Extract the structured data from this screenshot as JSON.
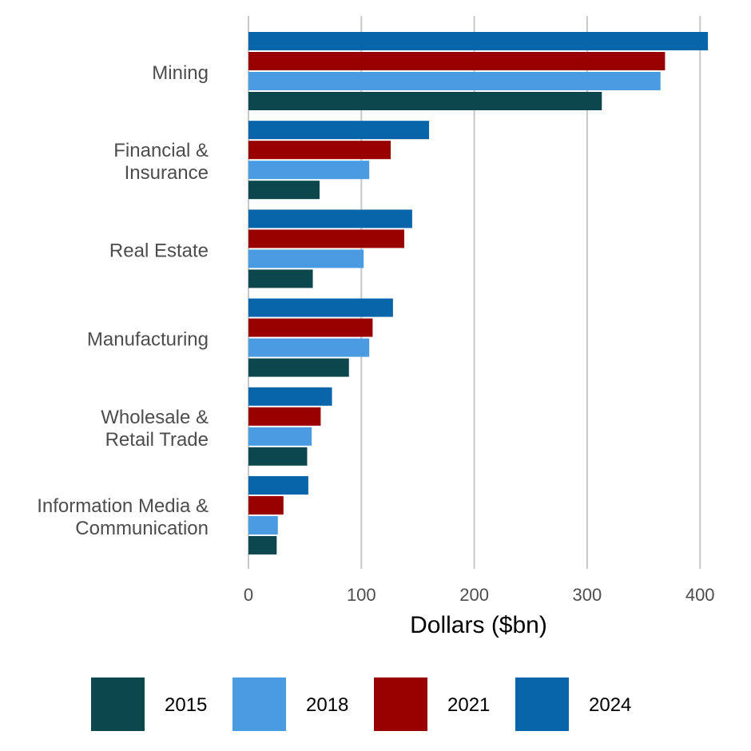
{
  "chart_data": {
    "type": "bar",
    "orientation": "horizontal",
    "categories": [
      [
        "Mining"
      ],
      [
        "Financial &",
        "Insurance"
      ],
      [
        "Real Estate"
      ],
      [
        "Manufacturing"
      ],
      [
        "Wholesale &",
        "Retail Trade"
      ],
      [
        "Information Media &",
        "Communication"
      ]
    ],
    "series": [
      {
        "name": "2024",
        "color": "#0865a9",
        "values": [
          407,
          160,
          145,
          128,
          74,
          53
        ]
      },
      {
        "name": "2021",
        "color": "#990000",
        "values": [
          369,
          126,
          138,
          110,
          64,
          31
        ]
      },
      {
        "name": "2018",
        "color": "#4a9be1",
        "values": [
          365,
          107,
          102,
          107,
          56,
          26
        ]
      },
      {
        "name": "2015",
        "color": "#0c474d",
        "values": [
          313,
          63,
          57,
          89,
          52,
          25
        ]
      }
    ],
    "xlabel": "Dollars ($bn)",
    "ylabel": "",
    "xlim": [
      0,
      410
    ],
    "xticks": [
      0,
      100,
      200,
      300,
      400
    ],
    "grid": "vertical",
    "legend": {
      "placement": "bottom",
      "order": [
        "2015",
        "2018",
        "2021",
        "2024"
      ]
    }
  }
}
